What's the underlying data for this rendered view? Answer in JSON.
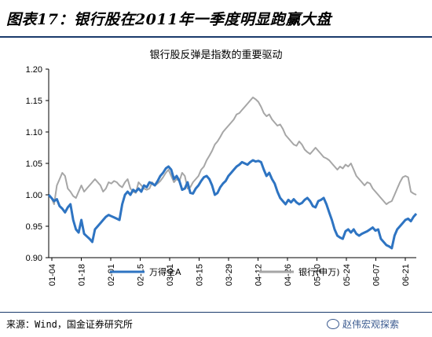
{
  "header": {
    "title": "图表17：银行股在2011年一季度明显跑赢大盘"
  },
  "source": {
    "text": "来源：Wind，国金证券研究所"
  },
  "watermark": {
    "text": "赵伟宏观探索",
    "icon": "wechat-icon"
  },
  "colors": {
    "series_wande": "#2e74c2",
    "series_bank": "#a6a6a6",
    "header_rule": "#1a3a6b"
  },
  "chart_data": {
    "type": "line",
    "title": "银行股反弹是指数的重要驱动",
    "ylim": [
      0.9,
      1.2
    ],
    "yticks": [
      "0.90",
      "0.95",
      "1.00",
      "1.05",
      "1.10",
      "1.15",
      "1.20"
    ],
    "x_ticks": [
      "01-04",
      "01-18",
      "02-01",
      "02-15",
      "03-01",
      "03-15",
      "03-29",
      "04-12",
      "04-26",
      "05-10",
      "05-24",
      "06-07",
      "06-21"
    ],
    "grid": false,
    "legend_position": "bottom",
    "series": [
      {
        "name": "万得全A",
        "values": [
          1.0,
          0.995,
          0.99,
          0.993,
          0.982,
          0.978,
          0.972,
          0.98,
          0.985,
          0.96,
          0.945,
          0.94,
          0.96,
          0.938,
          0.934,
          0.93,
          0.925,
          0.945,
          0.95,
          0.955,
          0.96,
          0.965,
          0.968,
          0.966,
          0.964,
          0.962,
          0.96,
          0.985,
          1.0,
          1.005,
          1.0,
          1.008,
          1.005,
          1.01,
          1.005,
          1.015,
          1.012,
          1.02,
          1.018,
          1.015,
          1.022,
          1.03,
          1.035,
          1.042,
          1.045,
          1.04,
          1.025,
          1.03,
          1.022,
          1.008,
          1.01,
          1.02,
          1.003,
          1.002,
          1.01,
          1.015,
          1.022,
          1.028,
          1.03,
          1.025,
          1.015,
          1.0,
          1.003,
          1.012,
          1.018,
          1.022,
          1.03,
          1.035,
          1.04,
          1.045,
          1.048,
          1.052,
          1.05,
          1.048,
          1.052,
          1.055,
          1.053,
          1.054,
          1.052,
          1.04,
          1.03,
          1.035,
          1.025,
          1.018,
          1.005,
          0.995,
          0.99,
          0.985,
          0.992,
          0.988,
          0.993,
          0.988,
          0.985,
          0.987,
          0.992,
          0.995,
          0.99,
          0.982,
          0.98,
          0.99,
          0.992,
          0.995,
          0.985,
          0.972,
          0.96,
          0.945,
          0.935,
          0.932,
          0.93,
          0.942,
          0.945,
          0.94,
          0.945,
          0.938,
          0.935,
          0.938,
          0.94,
          0.942,
          0.945,
          0.948,
          0.943,
          0.945,
          0.93,
          0.925,
          0.92,
          0.918,
          0.915,
          0.935,
          0.945,
          0.95,
          0.955,
          0.96,
          0.962,
          0.958,
          0.965,
          0.97
        ]
      },
      {
        "name": "银行(申万)",
        "values": [
          1.0,
          0.995,
          0.985,
          1.015,
          1.025,
          1.035,
          1.03,
          1.01,
          1.005,
          0.998,
          0.995,
          1.005,
          1.015,
          1.005,
          1.01,
          1.015,
          1.02,
          1.025,
          1.02,
          1.015,
          1.005,
          1.01,
          1.02,
          1.018,
          1.022,
          1.02,
          1.015,
          1.012,
          1.02,
          1.025,
          1.01,
          1.005,
          1.003,
          1.02,
          1.015,
          1.01,
          1.008,
          1.01,
          1.02,
          1.015,
          1.018,
          1.022,
          1.028,
          1.035,
          1.04,
          1.03,
          1.02,
          1.025,
          1.022,
          1.035,
          1.03,
          1.01,
          1.012,
          1.02,
          1.025,
          1.03,
          1.04,
          1.045,
          1.055,
          1.062,
          1.07,
          1.08,
          1.085,
          1.092,
          1.1,
          1.105,
          1.11,
          1.115,
          1.12,
          1.128,
          1.13,
          1.135,
          1.14,
          1.145,
          1.15,
          1.155,
          1.152,
          1.148,
          1.14,
          1.13,
          1.125,
          1.128,
          1.12,
          1.115,
          1.11,
          1.112,
          1.105,
          1.095,
          1.09,
          1.085,
          1.08,
          1.078,
          1.085,
          1.08,
          1.072,
          1.068,
          1.065,
          1.07,
          1.075,
          1.07,
          1.065,
          1.06,
          1.058,
          1.055,
          1.05,
          1.045,
          1.04,
          1.045,
          1.042,
          1.048,
          1.045,
          1.05,
          1.04,
          1.03,
          1.025,
          1.02,
          1.015,
          1.02,
          1.018,
          1.01,
          1.005,
          1.0,
          0.995,
          0.99,
          0.985,
          0.988,
          0.99,
          1.0,
          1.01,
          1.02,
          1.028,
          1.03,
          1.028,
          1.005,
          1.002,
          1.0
        ]
      }
    ]
  }
}
